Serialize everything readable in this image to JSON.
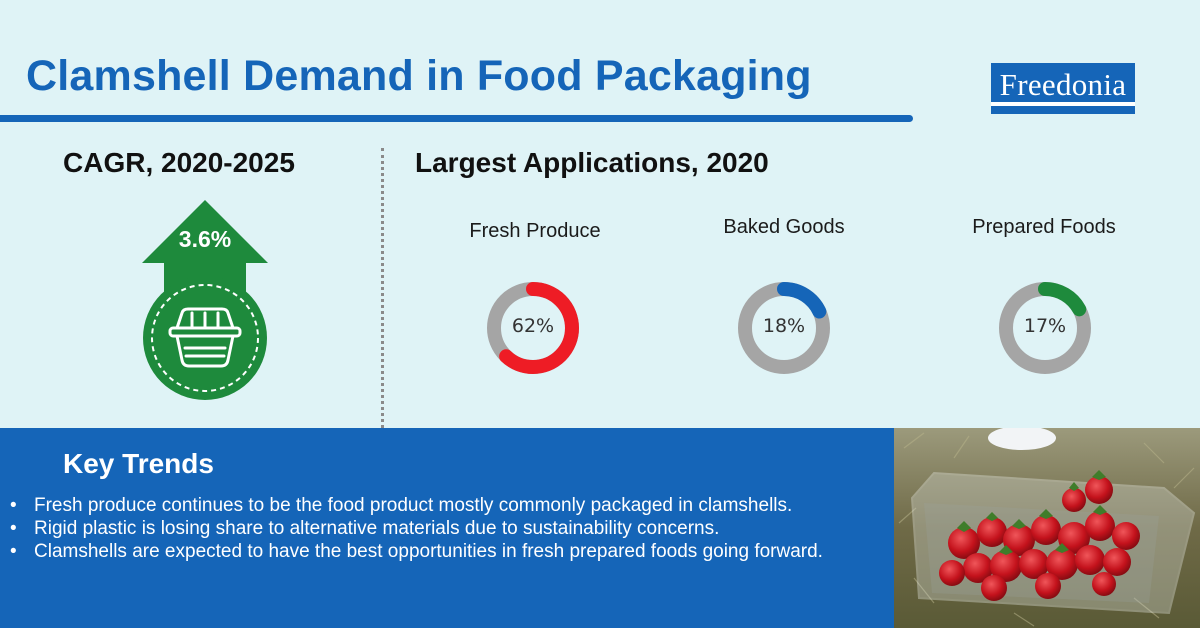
{
  "header": {
    "title": "Clamshell Demand in Food Packaging",
    "logo_text": "Freedonia"
  },
  "cagr": {
    "heading": "CAGR, 2020-2025",
    "value": "3.6%",
    "icon": "clamshell-container-icon"
  },
  "applications": {
    "heading": "Largest Applications, 2020"
  },
  "chart_data": {
    "type": "pie",
    "title": "Largest Applications, 2020",
    "categories": [
      "Fresh Produce",
      "Baked Goods",
      "Prepared Foods"
    ],
    "values": [
      62,
      18,
      17
    ],
    "labels": [
      "62%",
      "18%",
      "17%"
    ],
    "unit": "%",
    "colors": [
      "#ee1c25",
      "#1565b8",
      "#1e8a3c"
    ],
    "track_color": "#a5a5a5"
  },
  "trends": {
    "heading": "Key Trends",
    "items": [
      "Fresh produce continues to be the food product mostly commonly packaged in clamshells.",
      "Rigid plastic is losing share to alternative materials due to sustainability concerns.",
      "Clamshells are expected to have the best opportunities in fresh prepared foods going forward."
    ]
  },
  "colors": {
    "background": "#dff3f6",
    "brand_blue": "#1565b8",
    "green": "#1e8a3c"
  }
}
